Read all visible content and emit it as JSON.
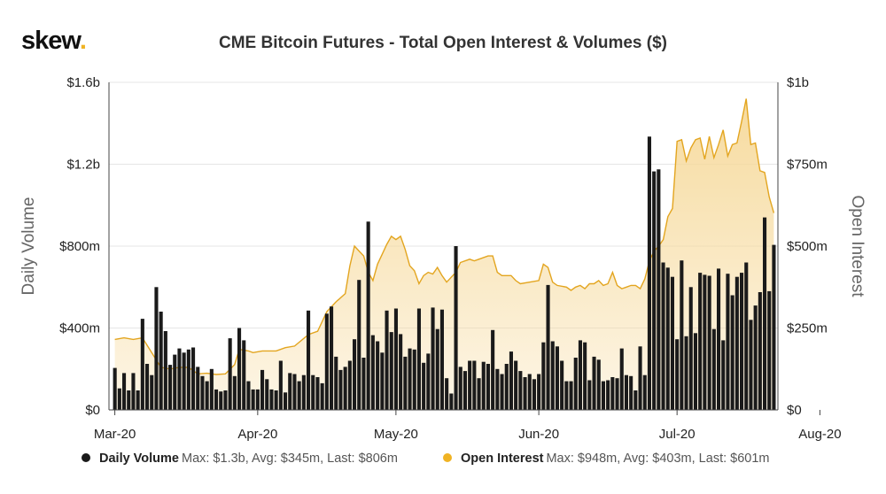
{
  "logo": {
    "text": "skew",
    "dot": "."
  },
  "chart_data": {
    "type": "bar+area",
    "title": "CME Bitcoin Futures - Total Open Interest & Volumes ($)",
    "y_left_label": "Daily Volume",
    "y_right_label": "Open Interest",
    "y_left_ticks": [
      "$0",
      "$400m",
      "$800m",
      "$1.2b",
      "$1.6b"
    ],
    "y_left_range": [
      0,
      1600
    ],
    "y_right_ticks": [
      "$0",
      "$250m",
      "$500m",
      "$750m",
      "$1b"
    ],
    "y_right_range": [
      0,
      1000
    ],
    "x_ticks": [
      "Mar-20",
      "Apr-20",
      "May-20",
      "Jun-20",
      "Jul-20",
      "Aug-20"
    ],
    "x_tick_day_index": [
      0,
      31,
      61,
      92,
      122,
      153
    ],
    "grid": "horizontal",
    "legend_position": "bottom",
    "colors": {
      "volume": "#1a1a1a",
      "open_interest_line": "#e3a51f",
      "open_interest_fill": "#f6d99a"
    },
    "series": [
      {
        "name": "Daily Volume",
        "unit": "$m",
        "kind": "bar",
        "points": [
          [
            0,
            205
          ],
          [
            1,
            105
          ],
          [
            2,
            180
          ],
          [
            3,
            95
          ],
          [
            4,
            180
          ],
          [
            5,
            95
          ],
          [
            6,
            445
          ],
          [
            7,
            225
          ],
          [
            8,
            170
          ],
          [
            9,
            600
          ],
          [
            10,
            480
          ],
          [
            11,
            385
          ],
          [
            12,
            220
          ],
          [
            13,
            270
          ],
          [
            14,
            300
          ],
          [
            15,
            280
          ],
          [
            16,
            295
          ],
          [
            17,
            305
          ],
          [
            18,
            210
          ],
          [
            19,
            165
          ],
          [
            20,
            140
          ],
          [
            21,
            200
          ],
          [
            22,
            100
          ],
          [
            23,
            90
          ],
          [
            24,
            95
          ],
          [
            25,
            350
          ],
          [
            26,
            165
          ],
          [
            27,
            400
          ],
          [
            28,
            340
          ],
          [
            29,
            140
          ],
          [
            30,
            100
          ],
          [
            31,
            100
          ],
          [
            32,
            195
          ],
          [
            33,
            150
          ],
          [
            34,
            100
          ],
          [
            35,
            95
          ],
          [
            36,
            240
          ],
          [
            37,
            85
          ],
          [
            38,
            180
          ],
          [
            39,
            175
          ],
          [
            40,
            140
          ],
          [
            41,
            170
          ],
          [
            42,
            485
          ],
          [
            43,
            170
          ],
          [
            44,
            160
          ],
          [
            45,
            130
          ],
          [
            46,
            470
          ],
          [
            47,
            505
          ],
          [
            48,
            260
          ],
          [
            49,
            195
          ],
          [
            50,
            210
          ],
          [
            51,
            240
          ],
          [
            52,
            345
          ],
          [
            53,
            635
          ],
          [
            54,
            255
          ],
          [
            55,
            920
          ],
          [
            56,
            365
          ],
          [
            57,
            335
          ],
          [
            58,
            280
          ],
          [
            59,
            485
          ],
          [
            60,
            380
          ],
          [
            61,
            495
          ],
          [
            62,
            370
          ],
          [
            63,
            260
          ],
          [
            64,
            300
          ],
          [
            65,
            295
          ],
          [
            66,
            495
          ],
          [
            67,
            230
          ],
          [
            68,
            275
          ],
          [
            69,
            500
          ],
          [
            70,
            395
          ],
          [
            71,
            490
          ],
          [
            72,
            155
          ],
          [
            73,
            80
          ],
          [
            74,
            800
          ],
          [
            75,
            210
          ],
          [
            76,
            190
          ],
          [
            77,
            240
          ],
          [
            78,
            240
          ],
          [
            79,
            155
          ],
          [
            80,
            235
          ],
          [
            81,
            225
          ],
          [
            82,
            390
          ],
          [
            83,
            200
          ],
          [
            84,
            175
          ],
          [
            85,
            225
          ],
          [
            86,
            285
          ],
          [
            87,
            240
          ],
          [
            88,
            190
          ],
          [
            89,
            160
          ],
          [
            90,
            175
          ],
          [
            91,
            150
          ],
          [
            92,
            175
          ],
          [
            93,
            330
          ],
          [
            94,
            610
          ],
          [
            95,
            335
          ],
          [
            96,
            310
          ],
          [
            97,
            240
          ],
          [
            98,
            140
          ],
          [
            99,
            140
          ],
          [
            100,
            255
          ],
          [
            101,
            340
          ],
          [
            102,
            330
          ],
          [
            103,
            145
          ],
          [
            104,
            260
          ],
          [
            105,
            245
          ],
          [
            106,
            140
          ],
          [
            107,
            145
          ],
          [
            108,
            160
          ],
          [
            109,
            155
          ],
          [
            110,
            300
          ],
          [
            111,
            170
          ],
          [
            112,
            165
          ],
          [
            113,
            95
          ],
          [
            114,
            310
          ],
          [
            115,
            170
          ],
          [
            116,
            1335
          ],
          [
            117,
            1165
          ],
          [
            118,
            1175
          ],
          [
            119,
            720
          ],
          [
            120,
            695
          ],
          [
            121,
            650
          ],
          [
            122,
            345
          ],
          [
            123,
            730
          ],
          [
            124,
            360
          ],
          [
            125,
            600
          ],
          [
            126,
            375
          ],
          [
            127,
            670
          ],
          [
            128,
            660
          ],
          [
            129,
            655
          ],
          [
            130,
            395
          ],
          [
            131,
            690
          ],
          [
            132,
            340
          ],
          [
            133,
            665
          ],
          [
            134,
            560
          ],
          [
            135,
            650
          ],
          [
            136,
            670
          ],
          [
            137,
            720
          ],
          [
            138,
            440
          ],
          [
            139,
            510
          ],
          [
            140,
            575
          ],
          [
            141,
            940
          ],
          [
            142,
            580
          ],
          [
            143,
            806
          ]
        ]
      },
      {
        "name": "Open Interest",
        "unit": "$m",
        "kind": "area",
        "points": [
          [
            0,
            215
          ],
          [
            2,
            220
          ],
          [
            4,
            215
          ],
          [
            6,
            220
          ],
          [
            8,
            175
          ],
          [
            10,
            130
          ],
          [
            12,
            125
          ],
          [
            14,
            130
          ],
          [
            16,
            130
          ],
          [
            18,
            110
          ],
          [
            20,
            112
          ],
          [
            22,
            108
          ],
          [
            24,
            110
          ],
          [
            26,
            138
          ],
          [
            27,
            185
          ],
          [
            29,
            180
          ],
          [
            30,
            175
          ],
          [
            32,
            180
          ],
          [
            35,
            180
          ],
          [
            37,
            190
          ],
          [
            39,
            195
          ],
          [
            42,
            230
          ],
          [
            44,
            240
          ],
          [
            46,
            300
          ],
          [
            48,
            330
          ],
          [
            50,
            355
          ],
          [
            51,
            440
          ],
          [
            52,
            500
          ],
          [
            53,
            485
          ],
          [
            54,
            470
          ],
          [
            55,
            420
          ],
          [
            56,
            395
          ],
          [
            57,
            445
          ],
          [
            58,
            475
          ],
          [
            59,
            505
          ],
          [
            60,
            530
          ],
          [
            61,
            520
          ],
          [
            62,
            530
          ],
          [
            63,
            490
          ],
          [
            64,
            440
          ],
          [
            65,
            425
          ],
          [
            66,
            385
          ],
          [
            67,
            410
          ],
          [
            68,
            420
          ],
          [
            69,
            415
          ],
          [
            70,
            435
          ],
          [
            71,
            410
          ],
          [
            72,
            390
          ],
          [
            74,
            420
          ],
          [
            75,
            450
          ],
          [
            77,
            460
          ],
          [
            78,
            455
          ],
          [
            79,
            460
          ],
          [
            81,
            470
          ],
          [
            82,
            470
          ],
          [
            83,
            420
          ],
          [
            84,
            410
          ],
          [
            86,
            410
          ],
          [
            87,
            395
          ],
          [
            88,
            385
          ],
          [
            90,
            390
          ],
          [
            92,
            395
          ],
          [
            93,
            445
          ],
          [
            94,
            435
          ],
          [
            95,
            390
          ],
          [
            96,
            380
          ],
          [
            98,
            375
          ],
          [
            99,
            365
          ],
          [
            100,
            375
          ],
          [
            101,
            380
          ],
          [
            102,
            370
          ],
          [
            103,
            385
          ],
          [
            104,
            385
          ],
          [
            105,
            395
          ],
          [
            106,
            380
          ],
          [
            107,
            385
          ],
          [
            108,
            420
          ],
          [
            109,
            380
          ],
          [
            110,
            370
          ],
          [
            111,
            375
          ],
          [
            112,
            380
          ],
          [
            113,
            380
          ],
          [
            114,
            370
          ],
          [
            115,
            400
          ],
          [
            116,
            455
          ],
          [
            117,
            485
          ],
          [
            118,
            500
          ],
          [
            119,
            520
          ],
          [
            120,
            590
          ],
          [
            121,
            615
          ],
          [
            122,
            820
          ],
          [
            123,
            825
          ],
          [
            124,
            760
          ],
          [
            125,
            800
          ],
          [
            126,
            825
          ],
          [
            127,
            830
          ],
          [
            128,
            765
          ],
          [
            129,
            835
          ],
          [
            130,
            770
          ],
          [
            131,
            810
          ],
          [
            132,
            855
          ],
          [
            133,
            775
          ],
          [
            134,
            810
          ],
          [
            135,
            815
          ],
          [
            136,
            880
          ],
          [
            137,
            950
          ],
          [
            138,
            810
          ],
          [
            139,
            815
          ],
          [
            140,
            730
          ],
          [
            141,
            725
          ],
          [
            142,
            650
          ],
          [
            143,
            601
          ]
        ]
      }
    ]
  },
  "legend": [
    {
      "name": "Daily Volume",
      "stats": "Max: $1.3b, Avg: $345m, Last: $806m",
      "color": "#1a1a1a"
    },
    {
      "name": "Open Interest",
      "stats": "Max: $948m, Avg: $403m, Last: $601m",
      "color": "#f0b323"
    }
  ]
}
